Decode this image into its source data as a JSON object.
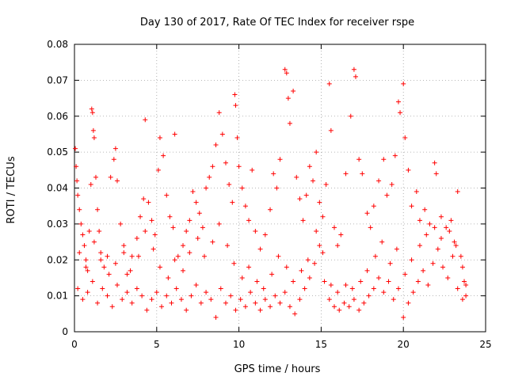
{
  "chart_data": {
    "type": "scatter",
    "title": "Day 130 of 2017, Rate Of TEC Index for receiver rspe",
    "xlabel": "GPS time / hours",
    "ylabel": "ROTI / TECUs",
    "xlim": [
      0,
      25
    ],
    "ylim": [
      0,
      0.08
    ],
    "x_ticks": [
      0,
      5,
      10,
      15,
      20,
      25
    ],
    "y_ticks": [
      0,
      0.01,
      0.02,
      0.03,
      0.04,
      0.05,
      0.06,
      0.07,
      0.08
    ],
    "x_tick_labels": [
      "0",
      "5",
      "10",
      "15",
      "20",
      "25"
    ],
    "y_tick_labels": [
      "0",
      "0.01",
      "0.02",
      "0.03",
      "0.04",
      "0.05",
      "0.06",
      "0.07",
      "0.08"
    ],
    "grid": true,
    "marker": "plus",
    "color": "#ff0000",
    "series": [
      {
        "points": [
          [
            0.05,
            0.051
          ],
          [
            0.1,
            0.046
          ],
          [
            0.15,
            0.042
          ],
          [
            0.2,
            0.038
          ],
          [
            0.3,
            0.034
          ],
          [
            0.4,
            0.03
          ],
          [
            0.5,
            0.027
          ],
          [
            0.6,
            0.024
          ],
          [
            0.7,
            0.02
          ],
          [
            0.8,
            0.017
          ],
          [
            0.9,
            0.028
          ],
          [
            1.0,
            0.041
          ],
          [
            1.05,
            0.062
          ],
          [
            1.1,
            0.061
          ],
          [
            1.15,
            0.056
          ],
          [
            1.2,
            0.054
          ],
          [
            1.3,
            0.043
          ],
          [
            1.4,
            0.034
          ],
          [
            1.5,
            0.028
          ],
          [
            1.6,
            0.022
          ],
          [
            1.8,
            0.018
          ],
          [
            2.0,
            0.021
          ],
          [
            2.2,
            0.043
          ],
          [
            2.4,
            0.048
          ],
          [
            2.5,
            0.051
          ],
          [
            2.6,
            0.042
          ],
          [
            2.8,
            0.03
          ],
          [
            3.0,
            0.022
          ],
          [
            3.2,
            0.016
          ],
          [
            3.5,
            0.021
          ],
          [
            3.8,
            0.026
          ],
          [
            4.0,
            0.032
          ],
          [
            4.2,
            0.037
          ],
          [
            4.3,
            0.059
          ],
          [
            4.5,
            0.036
          ],
          [
            4.7,
            0.031
          ],
          [
            4.9,
            0.027
          ],
          [
            5.1,
            0.045
          ],
          [
            5.2,
            0.054
          ],
          [
            5.4,
            0.049
          ],
          [
            5.6,
            0.038
          ],
          [
            5.8,
            0.032
          ],
          [
            6.0,
            0.029
          ],
          [
            6.1,
            0.055
          ],
          [
            6.3,
            0.021
          ],
          [
            6.6,
            0.024
          ],
          [
            6.8,
            0.028
          ],
          [
            7.0,
            0.031
          ],
          [
            7.2,
            0.039
          ],
          [
            7.4,
            0.036
          ],
          [
            7.6,
            0.033
          ],
          [
            7.8,
            0.029
          ],
          [
            8.0,
            0.04
          ],
          [
            8.2,
            0.043
          ],
          [
            8.4,
            0.046
          ],
          [
            8.6,
            0.052
          ],
          [
            8.8,
            0.061
          ],
          [
            9.0,
            0.055
          ],
          [
            9.2,
            0.047
          ],
          [
            9.4,
            0.041
          ],
          [
            9.6,
            0.036
          ],
          [
            9.75,
            0.066
          ],
          [
            9.8,
            0.063
          ],
          [
            9.9,
            0.054
          ],
          [
            10.0,
            0.046
          ],
          [
            10.2,
            0.04
          ],
          [
            10.4,
            0.035
          ],
          [
            10.6,
            0.031
          ],
          [
            10.8,
            0.045
          ],
          [
            11.0,
            0.028
          ],
          [
            11.3,
            0.023
          ],
          [
            11.6,
            0.027
          ],
          [
            11.9,
            0.034
          ],
          [
            12.1,
            0.044
          ],
          [
            12.3,
            0.04
          ],
          [
            12.5,
            0.048
          ],
          [
            12.8,
            0.073
          ],
          [
            12.9,
            0.072
          ],
          [
            13.0,
            0.065
          ],
          [
            13.1,
            0.058
          ],
          [
            13.3,
            0.067
          ],
          [
            13.5,
            0.043
          ],
          [
            13.7,
            0.037
          ],
          [
            13.9,
            0.031
          ],
          [
            14.1,
            0.038
          ],
          [
            14.3,
            0.046
          ],
          [
            14.5,
            0.042
          ],
          [
            14.7,
            0.05
          ],
          [
            14.9,
            0.036
          ],
          [
            15.1,
            0.032
          ],
          [
            15.3,
            0.041
          ],
          [
            15.5,
            0.069
          ],
          [
            15.6,
            0.056
          ],
          [
            15.8,
            0.029
          ],
          [
            16.0,
            0.024
          ],
          [
            16.2,
            0.027
          ],
          [
            16.5,
            0.044
          ],
          [
            16.8,
            0.06
          ],
          [
            17.0,
            0.073
          ],
          [
            17.1,
            0.071
          ],
          [
            17.3,
            0.048
          ],
          [
            17.5,
            0.044
          ],
          [
            17.8,
            0.033
          ],
          [
            18.0,
            0.029
          ],
          [
            18.2,
            0.035
          ],
          [
            18.5,
            0.042
          ],
          [
            18.8,
            0.048
          ],
          [
            19.0,
            0.038
          ],
          [
            19.3,
            0.041
          ],
          [
            19.5,
            0.049
          ],
          [
            19.7,
            0.064
          ],
          [
            19.8,
            0.061
          ],
          [
            20.0,
            0.069
          ],
          [
            20.1,
            0.054
          ],
          [
            20.3,
            0.045
          ],
          [
            20.5,
            0.035
          ],
          [
            20.8,
            0.039
          ],
          [
            21.0,
            0.031
          ],
          [
            21.3,
            0.034
          ],
          [
            21.6,
            0.03
          ],
          [
            21.9,
            0.047
          ],
          [
            22.0,
            0.044
          ],
          [
            22.3,
            0.032
          ],
          [
            22.6,
            0.029
          ],
          [
            22.9,
            0.031
          ],
          [
            23.1,
            0.025
          ],
          [
            23.3,
            0.039
          ],
          [
            23.5,
            0.021
          ],
          [
            23.7,
            0.014
          ],
          [
            23.8,
            0.01
          ],
          [
            0.2,
            0.012
          ],
          [
            0.5,
            0.009
          ],
          [
            0.8,
            0.011
          ],
          [
            1.1,
            0.014
          ],
          [
            1.4,
            0.008
          ],
          [
            1.7,
            0.012
          ],
          [
            2.0,
            0.01
          ],
          [
            2.3,
            0.007
          ],
          [
            2.6,
            0.013
          ],
          [
            2.9,
            0.009
          ],
          [
            3.2,
            0.011
          ],
          [
            3.5,
            0.008
          ],
          [
            3.8,
            0.012
          ],
          [
            4.1,
            0.01
          ],
          [
            4.4,
            0.006
          ],
          [
            4.7,
            0.009
          ],
          [
            5.0,
            0.011
          ],
          [
            5.3,
            0.007
          ],
          [
            5.6,
            0.01
          ],
          [
            5.9,
            0.008
          ],
          [
            6.2,
            0.012
          ],
          [
            6.5,
            0.009
          ],
          [
            6.8,
            0.006
          ],
          [
            7.1,
            0.01
          ],
          [
            7.4,
            0.013
          ],
          [
            7.7,
            0.008
          ],
          [
            8.0,
            0.011
          ],
          [
            8.3,
            0.009
          ],
          [
            8.6,
            0.004
          ],
          [
            8.9,
            0.012
          ],
          [
            9.2,
            0.008
          ],
          [
            9.5,
            0.01
          ],
          [
            9.8,
            0.006
          ],
          [
            10.1,
            0.009
          ],
          [
            10.4,
            0.007
          ],
          [
            10.7,
            0.011
          ],
          [
            11.0,
            0.008
          ],
          [
            11.3,
            0.006
          ],
          [
            11.6,
            0.009
          ],
          [
            11.9,
            0.007
          ],
          [
            12.2,
            0.01
          ],
          [
            12.5,
            0.008
          ],
          [
            12.8,
            0.011
          ],
          [
            13.1,
            0.007
          ],
          [
            13.4,
            0.005
          ],
          [
            13.7,
            0.009
          ],
          [
            14.0,
            0.012
          ],
          [
            14.3,
            0.015
          ],
          [
            14.6,
            0.019
          ],
          [
            14.9,
            0.024
          ],
          [
            15.2,
            0.014
          ],
          [
            15.5,
            0.009
          ],
          [
            15.8,
            0.007
          ],
          [
            16.1,
            0.006
          ],
          [
            16.4,
            0.008
          ],
          [
            16.7,
            0.007
          ],
          [
            17.0,
            0.009
          ],
          [
            17.3,
            0.006
          ],
          [
            17.6,
            0.008
          ],
          [
            17.9,
            0.01
          ],
          [
            18.2,
            0.012
          ],
          [
            18.5,
            0.015
          ],
          [
            18.8,
            0.011
          ],
          [
            19.1,
            0.014
          ],
          [
            19.4,
            0.009
          ],
          [
            19.7,
            0.012
          ],
          [
            20.0,
            0.004
          ],
          [
            20.3,
            0.008
          ],
          [
            20.6,
            0.011
          ],
          [
            20.9,
            0.014
          ],
          [
            21.2,
            0.017
          ],
          [
            21.5,
            0.013
          ],
          [
            21.8,
            0.019
          ],
          [
            22.1,
            0.023
          ],
          [
            22.4,
            0.018
          ],
          [
            22.7,
            0.015
          ],
          [
            23.0,
            0.021
          ],
          [
            23.3,
            0.012
          ],
          [
            23.6,
            0.009
          ],
          [
            23.8,
            0.013
          ],
          [
            0.3,
            0.022
          ],
          [
            0.7,
            0.018
          ],
          [
            1.2,
            0.025
          ],
          [
            1.6,
            0.02
          ],
          [
            2.1,
            0.016
          ],
          [
            2.5,
            0.019
          ],
          [
            3.0,
            0.024
          ],
          [
            3.4,
            0.017
          ],
          [
            3.9,
            0.021
          ],
          [
            4.3,
            0.028
          ],
          [
            4.8,
            0.023
          ],
          [
            5.2,
            0.018
          ],
          [
            5.7,
            0.015
          ],
          [
            6.1,
            0.02
          ],
          [
            6.6,
            0.017
          ],
          [
            7.0,
            0.022
          ],
          [
            7.5,
            0.026
          ],
          [
            7.9,
            0.021
          ],
          [
            8.4,
            0.025
          ],
          [
            8.8,
            0.03
          ],
          [
            9.3,
            0.024
          ],
          [
            9.7,
            0.019
          ],
          [
            10.2,
            0.015
          ],
          [
            10.6,
            0.018
          ],
          [
            11.1,
            0.014
          ],
          [
            11.5,
            0.012
          ],
          [
            12.0,
            0.016
          ],
          [
            12.4,
            0.021
          ],
          [
            12.9,
            0.018
          ],
          [
            13.3,
            0.014
          ],
          [
            13.8,
            0.017
          ],
          [
            14.2,
            0.02
          ],
          [
            14.7,
            0.028
          ],
          [
            15.1,
            0.022
          ],
          [
            15.6,
            0.013
          ],
          [
            16.0,
            0.011
          ],
          [
            16.5,
            0.013
          ],
          [
            16.9,
            0.012
          ],
          [
            17.4,
            0.014
          ],
          [
            17.8,
            0.017
          ],
          [
            18.3,
            0.021
          ],
          [
            18.7,
            0.025
          ],
          [
            19.2,
            0.019
          ],
          [
            19.6,
            0.023
          ],
          [
            20.1,
            0.016
          ],
          [
            20.5,
            0.02
          ],
          [
            21.0,
            0.024
          ],
          [
            21.4,
            0.027
          ],
          [
            21.9,
            0.029
          ],
          [
            22.3,
            0.026
          ],
          [
            22.8,
            0.028
          ],
          [
            23.2,
            0.024
          ],
          [
            23.6,
            0.018
          ]
        ]
      }
    ]
  }
}
